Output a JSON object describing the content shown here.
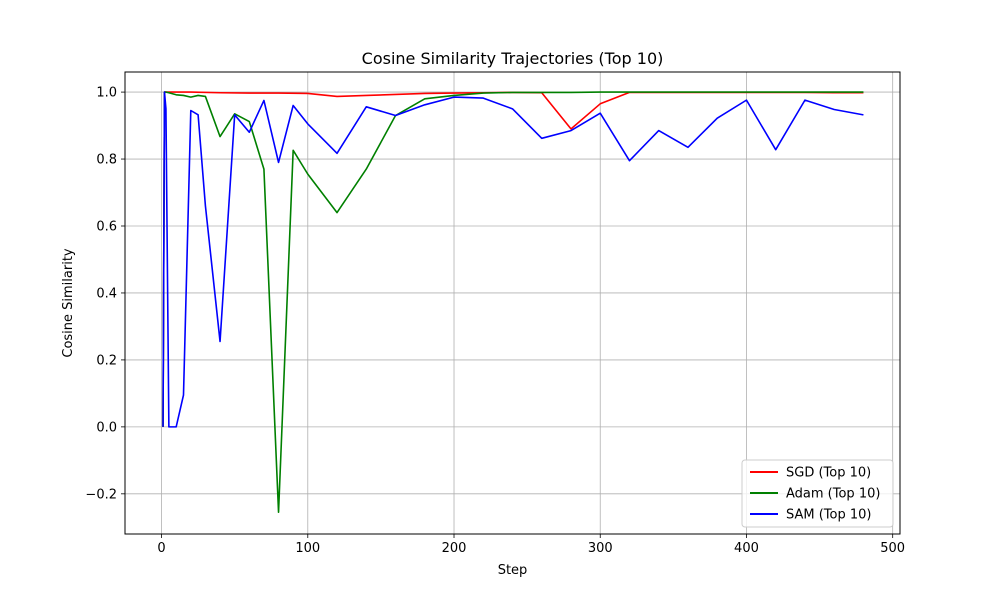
{
  "chart_data": {
    "type": "line",
    "title": "Cosine Similarity Trajectories (Top 10)",
    "xlabel": "Step",
    "ylabel": "Cosine Similarity",
    "xlim": [
      -25,
      505
    ],
    "ylim": [
      -0.32,
      1.06
    ],
    "xticks": [
      0,
      100,
      200,
      300,
      400,
      500
    ],
    "yticks": [
      -0.2,
      0.0,
      0.2,
      0.4,
      0.6,
      0.8,
      1.0
    ],
    "xtick_labels": [
      "0",
      "100",
      "200",
      "300",
      "400",
      "500"
    ],
    "ytick_labels": [
      "−0.2",
      "0.0",
      "0.2",
      "0.4",
      "0.6",
      "0.8",
      "1.0"
    ],
    "grid": true,
    "legend_position": "lower right",
    "series": [
      {
        "name": "SGD (Top 10)",
        "color": "#ff0000",
        "x": [
          1,
          2,
          3,
          5,
          10,
          20,
          40,
          60,
          80,
          100,
          120,
          140,
          160,
          180,
          200,
          220,
          240,
          260,
          280,
          300,
          320,
          340,
          360,
          380,
          400,
          420,
          440,
          460,
          480
        ],
        "y": [
          0.0,
          1.0,
          1.0,
          1.0,
          1.0,
          1.0,
          0.998,
          0.997,
          0.997,
          0.996,
          0.987,
          0.99,
          0.993,
          0.996,
          0.997,
          0.998,
          0.999,
          0.998,
          0.89,
          0.965,
          0.999,
          0.999,
          0.999,
          0.999,
          0.999,
          0.999,
          0.999,
          0.998,
          0.998
        ]
      },
      {
        "name": "Adam (Top 10)",
        "color": "#008000",
        "x": [
          1,
          2,
          3,
          5,
          10,
          15,
          20,
          25,
          30,
          40,
          50,
          60,
          70,
          80,
          90,
          100,
          120,
          140,
          160,
          180,
          200,
          220,
          240,
          260,
          280,
          300,
          320,
          340,
          360,
          380,
          400,
          420,
          440,
          460,
          480
        ],
        "y": [
          0.0,
          1.0,
          1.0,
          0.998,
          0.992,
          0.99,
          0.985,
          0.99,
          0.987,
          0.867,
          0.935,
          0.912,
          0.77,
          -0.255,
          0.826,
          0.755,
          0.64,
          0.77,
          0.93,
          0.98,
          0.99,
          0.997,
          0.999,
          0.999,
          0.999,
          1.0,
          1.0,
          1.0,
          1.0,
          1.0,
          1.0,
          1.0,
          1.0,
          1.0,
          1.0
        ]
      },
      {
        "name": "SAM (Top 10)",
        "color": "#0000ff",
        "x": [
          1,
          2,
          3,
          5,
          10,
          15,
          20,
          25,
          30,
          40,
          50,
          60,
          70,
          80,
          90,
          100,
          120,
          140,
          160,
          180,
          200,
          220,
          240,
          260,
          280,
          300,
          320,
          340,
          360,
          380,
          400,
          420,
          440,
          460,
          480
        ],
        "y": [
          0.0,
          1.0,
          0.95,
          0.0,
          0.0,
          0.095,
          0.945,
          0.932,
          0.66,
          0.255,
          0.932,
          0.88,
          0.975,
          0.79,
          0.96,
          0.905,
          0.817,
          0.956,
          0.93,
          0.962,
          0.985,
          0.982,
          0.95,
          0.862,
          0.885,
          0.937,
          0.795,
          0.885,
          0.835,
          0.922,
          0.976,
          0.828,
          0.976,
          0.948,
          0.932
        ]
      }
    ]
  }
}
